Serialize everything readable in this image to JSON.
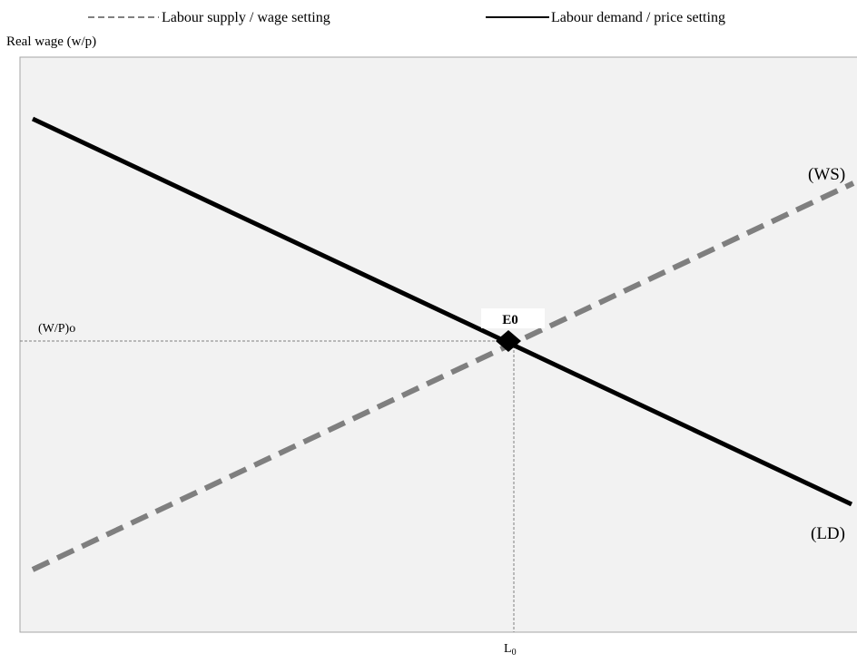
{
  "legend": {
    "items": [
      {
        "label": "Labour supply / wage setting"
      },
      {
        "label": "Labour demand / price setting"
      }
    ]
  },
  "y_axis_label": "Real wage (w/p)",
  "curves": {
    "ws": "(WS)",
    "ld": "(LD)"
  },
  "equilibrium": {
    "label": "E0",
    "wage_label": "(W/P)o",
    "employment_label": {
      "text": "L",
      "subscript": "0"
    }
  }
}
